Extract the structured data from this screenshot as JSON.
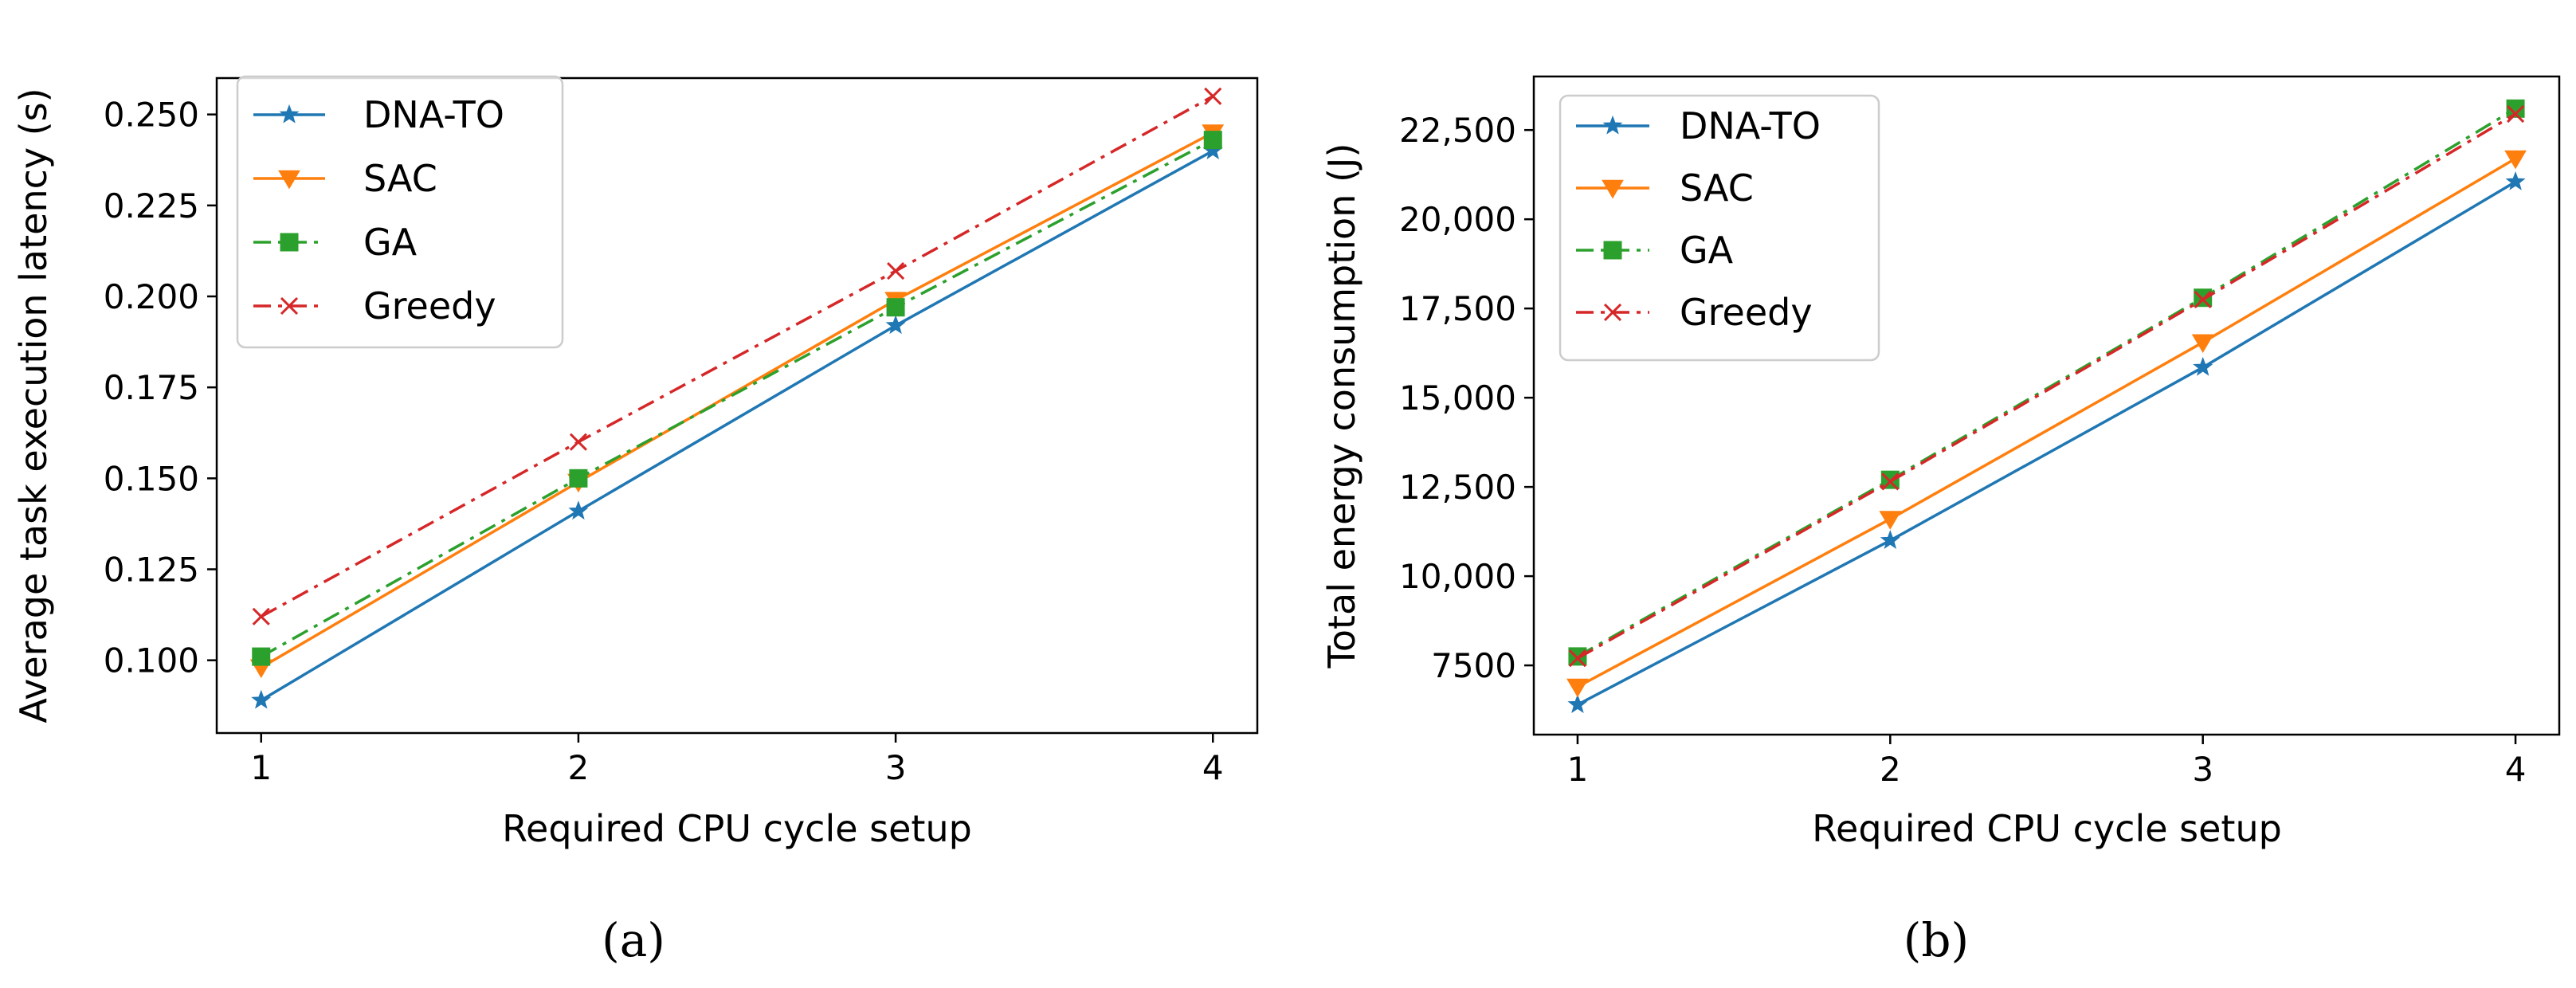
{
  "colors": {
    "DNA-TO": "#1f77b4",
    "SAC": "#ff7f0e",
    "GA": "#2ca02c",
    "Greedy": "#d62728"
  },
  "chart_data": [
    {
      "type": "line",
      "caption": "(a)",
      "xlabel": "Required CPU cycle setup",
      "ylabel": "Average task execution latency (s)",
      "x": [
        1,
        2,
        3,
        4
      ],
      "xlim": [
        0.86,
        4.14
      ],
      "ylim": [
        0.08,
        0.26
      ],
      "xticks": [
        1,
        2,
        3,
        4
      ],
      "xtick_labels": [
        "1",
        "2",
        "3",
        "4"
      ],
      "yticks": [
        0.1,
        0.125,
        0.15,
        0.175,
        0.2,
        0.225,
        0.25
      ],
      "ytick_labels": [
        "0.100",
        "0.125",
        "0.150",
        "0.175",
        "0.200",
        "0.225",
        "0.250"
      ],
      "legend_position": "upper-left",
      "series": [
        {
          "name": "DNA-TO",
          "marker": "star",
          "linestyle": "solid",
          "values": [
            0.089,
            0.141,
            0.192,
            0.24
          ]
        },
        {
          "name": "SAC",
          "marker": "triangle-down",
          "linestyle": "solid",
          "values": [
            0.098,
            0.149,
            0.199,
            0.245
          ]
        },
        {
          "name": "GA",
          "marker": "square",
          "linestyle": "dashdot",
          "values": [
            0.101,
            0.15,
            0.197,
            0.243
          ]
        },
        {
          "name": "Greedy",
          "marker": "x",
          "linestyle": "dashdot",
          "values": [
            0.112,
            0.16,
            0.207,
            0.255
          ]
        }
      ]
    },
    {
      "type": "line",
      "caption": "(b)",
      "xlabel": "Required CPU cycle setup",
      "ylabel": "Total energy consumption (J)",
      "x": [
        1,
        2,
        3,
        4
      ],
      "xlim": [
        0.86,
        4.14
      ],
      "ylim": [
        5560,
        24000
      ],
      "xticks": [
        1,
        2,
        3,
        4
      ],
      "xtick_labels": [
        "1",
        "2",
        "3",
        "4"
      ],
      "yticks": [
        7500,
        10000,
        12500,
        15000,
        17500,
        20000,
        22500
      ],
      "ytick_labels": [
        "7500",
        "10,000",
        "12,500",
        "15,000",
        "17,500",
        "20,000",
        "22,500"
      ],
      "legend_position": "upper-left",
      "series": [
        {
          "name": "DNA-TO",
          "marker": "star",
          "linestyle": "solid",
          "values": [
            6400,
            11000,
            15850,
            21050
          ]
        },
        {
          "name": "SAC",
          "marker": "triangle-down",
          "linestyle": "solid",
          "values": [
            6900,
            11600,
            16550,
            21700
          ]
        },
        {
          "name": "GA",
          "marker": "square",
          "linestyle": "dashdot",
          "values": [
            7750,
            12700,
            17800,
            23100
          ]
        },
        {
          "name": "Greedy",
          "marker": "x",
          "linestyle": "dashdot",
          "values": [
            7700,
            12650,
            17750,
            22950
          ]
        }
      ]
    }
  ]
}
